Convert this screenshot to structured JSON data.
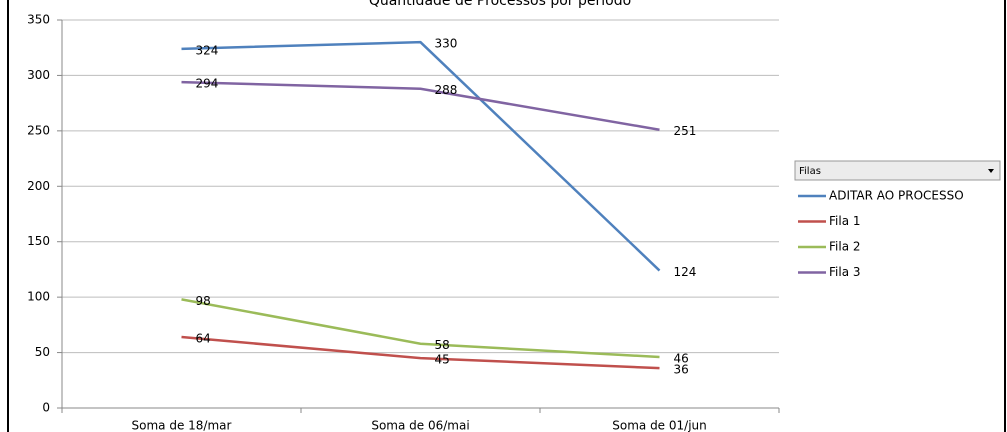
{
  "chart_data": {
    "type": "line",
    "title": "Quantidade de Processos por período",
    "categories": [
      "Soma de 18/mar",
      "Soma de 06/mai",
      "Soma de 01/jun"
    ],
    "series": [
      {
        "name": "ADITAR AO PROCESSO",
        "color": "#4f81bd",
        "values": [
          324,
          330,
          124
        ]
      },
      {
        "name": "Fila 1",
        "color": "#c0504d",
        "values": [
          64,
          45,
          36
        ]
      },
      {
        "name": "Fila 2",
        "color": "#9bbb59",
        "values": [
          98,
          58,
          46
        ]
      },
      {
        "name": "Fila 3",
        "color": "#8064a2",
        "values": [
          294,
          288,
          251
        ]
      }
    ],
    "legend_title": "Filas",
    "ylim": [
      0,
      350
    ],
    "yticks": [
      0,
      50,
      100,
      150,
      200,
      250,
      300,
      350
    ],
    "grid": true,
    "legend": "right"
  }
}
